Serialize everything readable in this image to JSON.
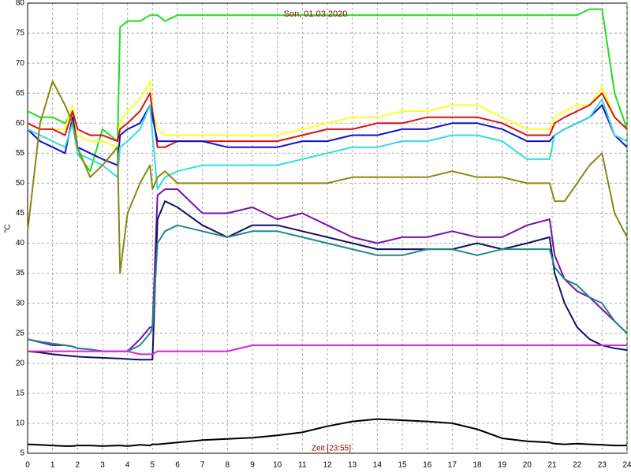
{
  "chart_data": {
    "type": "line",
    "title": "Son, 01.03.2020",
    "xlabel": "Zeit [23:55]",
    "ylabel": "°C",
    "x": [
      0,
      0.5,
      1,
      1.5,
      1.8,
      2,
      2.5,
      3,
      3.6,
      3.7,
      4,
      4.5,
      4.9,
      5,
      5.2,
      5.5,
      6,
      7,
      8,
      9,
      10,
      11,
      12,
      13,
      14,
      15,
      16,
      17,
      18,
      19,
      20,
      20.9,
      21.1,
      21.5,
      22,
      22.5,
      23,
      23.5,
      24
    ],
    "series": [
      {
        "color": "#22dd22",
        "values": [
          62,
          61,
          61,
          60,
          62,
          55,
          52,
          59,
          57,
          76,
          77,
          77,
          78,
          78,
          78,
          77,
          78,
          78,
          78,
          78,
          78,
          78,
          78,
          78,
          78,
          78,
          78,
          78,
          78,
          78,
          78,
          78,
          78,
          78,
          78,
          79,
          79,
          65,
          59
        ]
      },
      {
        "color": "#ffff22",
        "values": [
          60,
          59,
          59,
          59,
          63,
          58,
          57,
          57,
          56,
          60,
          62,
          64,
          67,
          62,
          59,
          58,
          58,
          58,
          58,
          58,
          58,
          59,
          60,
          61,
          61,
          62,
          62,
          63,
          63,
          61,
          59,
          59,
          61,
          62,
          63,
          63,
          66,
          61,
          59
        ]
      },
      {
        "color": "#dd1111",
        "values": [
          60,
          59,
          59,
          58,
          62,
          59,
          58,
          58,
          57,
          59,
          60,
          62,
          65,
          62,
          56,
          56,
          57,
          57,
          57,
          57,
          57,
          58,
          59,
          59,
          60,
          60,
          61,
          61,
          61,
          60,
          58,
          58,
          60,
          61,
          62,
          63,
          65,
          61,
          59
        ]
      },
      {
        "color": "#1111cc",
        "values": [
          59,
          57,
          56,
          55,
          61,
          56,
          55,
          54,
          53,
          58,
          59,
          60,
          63,
          61,
          57,
          57,
          57,
          57,
          56,
          56,
          56,
          57,
          57,
          58,
          58,
          59,
          59,
          60,
          60,
          59,
          57,
          57,
          58,
          59,
          60,
          61,
          63,
          58,
          56
        ]
      },
      {
        "color": "#33dddd",
        "values": [
          59,
          58,
          57,
          56,
          60,
          55,
          54,
          53,
          51,
          56,
          57,
          59,
          63,
          58,
          49,
          51,
          52,
          53,
          53,
          53,
          53,
          54,
          55,
          56,
          56,
          57,
          57,
          58,
          58,
          57,
          54,
          54,
          58,
          59,
          60,
          61,
          64,
          58,
          57
        ]
      },
      {
        "color": "#888811",
        "values": [
          42,
          60,
          67,
          63,
          60,
          56,
          51,
          53,
          56,
          35,
          45,
          50,
          53,
          49,
          51,
          52,
          50,
          50,
          50,
          50,
          50,
          50,
          50,
          51,
          51,
          51,
          51,
          52,
          51,
          51,
          50,
          50,
          47,
          47,
          50,
          53,
          55,
          45,
          41
        ]
      },
      {
        "color": "#7711aa",
        "values": [
          24,
          23.5,
          23,
          23,
          22.8,
          22.5,
          22.3,
          22,
          22,
          22,
          22,
          24,
          26,
          26,
          48,
          49,
          49,
          45,
          45,
          46,
          44,
          45,
          43,
          41,
          40,
          41,
          41,
          42,
          41,
          41,
          43,
          44,
          38,
          34,
          32,
          31,
          29,
          27,
          25
        ]
      },
      {
        "color": "#111166",
        "values": [
          22,
          21.8,
          21.5,
          21.3,
          21.2,
          21.1,
          21,
          20.9,
          20.8,
          20.8,
          20.7,
          20.6,
          20.6,
          20.6,
          44,
          47,
          46,
          43,
          41,
          43,
          43,
          42,
          41,
          40,
          39,
          39,
          39,
          39,
          40,
          39,
          40,
          41,
          35,
          30,
          26,
          24,
          23,
          22.5,
          22.2
        ]
      },
      {
        "color": "#228888",
        "values": [
          24,
          23.6,
          23.3,
          23,
          22.8,
          22.5,
          22.3,
          22,
          22,
          22,
          22,
          23,
          25,
          26,
          40,
          42,
          43,
          42,
          41,
          42,
          42,
          41,
          40,
          39,
          38,
          38,
          39,
          39,
          38,
          39,
          39,
          39,
          36,
          34,
          33,
          31,
          30,
          27,
          25
        ]
      },
      {
        "color": "#dd22dd",
        "values": [
          22,
          22,
          22,
          22,
          22,
          22,
          22,
          22,
          22,
          22,
          22,
          21.5,
          21.5,
          21.5,
          22,
          22,
          22,
          22,
          22,
          23,
          23,
          23,
          23,
          23,
          23,
          23,
          23,
          23,
          23,
          23,
          23,
          23,
          23,
          23,
          23,
          23,
          23,
          23,
          23
        ]
      },
      {
        "color": "#000000",
        "values": [
          6.5,
          6.4,
          6.3,
          6.2,
          6.2,
          6.3,
          6.3,
          6.2,
          6.3,
          6.3,
          6.2,
          6.4,
          6.3,
          6.5,
          6.5,
          6.6,
          6.8,
          7.2,
          7.4,
          7.6,
          8,
          8.5,
          9.5,
          10.3,
          10.7,
          10.5,
          10.3,
          10,
          9,
          7.5,
          7,
          6.8,
          6.6,
          6.5,
          6.6,
          6.5,
          6.4,
          6.3,
          6.3
        ]
      }
    ],
    "xlim": [
      0,
      24
    ],
    "xticks": [
      0,
      1,
      2,
      3,
      4,
      5,
      6,
      7,
      8,
      9,
      10,
      11,
      12,
      13,
      14,
      15,
      16,
      17,
      18,
      19,
      20,
      21,
      22,
      23,
      24
    ],
    "ylim": [
      5,
      80
    ],
    "yticks": [
      5,
      10,
      15,
      20,
      25,
      30,
      35,
      40,
      45,
      50,
      55,
      60,
      65,
      70,
      75,
      80
    ],
    "grid": true
  }
}
